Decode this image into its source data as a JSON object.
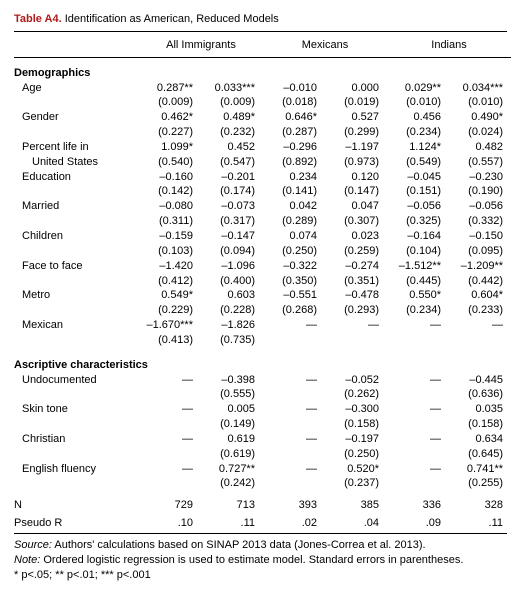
{
  "title_lead": "Table A4.",
  "title_rest": " Identification as American, Reduced Models",
  "group_headers": [
    "All Immigrants",
    "Mexicans",
    "Indians"
  ],
  "sections": [
    {
      "label": "Demographics",
      "rows": [
        {
          "label": "Age",
          "indent": 1,
          "b": [
            "0.287**",
            "0.033***",
            "–0.010",
            "0.000",
            "0.029**",
            "0.034***"
          ],
          "se": [
            "(0.009)",
            "(0.009)",
            "(0.018)",
            "(0.019)",
            "(0.010)",
            "(0.010)"
          ]
        },
        {
          "label": "Gender",
          "indent": 1,
          "b": [
            "0.462*",
            "0.489*",
            "0.646*",
            "0.527",
            "0.456",
            "0.490*"
          ],
          "se": [
            "(0.227)",
            "(0.232)",
            "(0.287)",
            "(0.299)",
            "(0.234)",
            "(0.024)"
          ]
        },
        {
          "label": "Percent life in",
          "label2": "United States",
          "indent": 1,
          "b": [
            "1.099*",
            "0.452",
            "–0.296",
            "–1.197",
            "1.124*",
            "0.482"
          ],
          "se": [
            "(0.540)",
            "(0.547)",
            "(0.892)",
            "(0.973)",
            "(0.549)",
            "(0.557)"
          ]
        },
        {
          "label": "Education",
          "indent": 1,
          "b": [
            "–0.160",
            "–0.201",
            "0.234",
            "0.120",
            "–0.045",
            "–0.230"
          ],
          "se": [
            "(0.142)",
            "(0.174)",
            "(0.141)",
            "(0.147)",
            "(0.151)",
            "(0.190)"
          ]
        },
        {
          "label": "Married",
          "indent": 1,
          "b": [
            "–0.080",
            "–0.073",
            "0.042",
            "0.047",
            "–0.056",
            "–0.056"
          ],
          "se": [
            "(0.311)",
            "(0.317)",
            "(0.289)",
            "(0.307)",
            "(0.325)",
            "(0.332)"
          ]
        },
        {
          "label": "Children",
          "indent": 1,
          "b": [
            "–0.159",
            "–0.147",
            "0.074",
            "0.023",
            "–0.164",
            "–0.150"
          ],
          "se": [
            "(0.103)",
            "(0.094)",
            "(0.250)",
            "(0.259)",
            "(0.104)",
            "(0.095)"
          ]
        },
        {
          "label": "Face to face",
          "indent": 1,
          "b": [
            "–1.420",
            "–1.096",
            "–0.322",
            "–0.274",
            "–1.512**",
            "–1.209**"
          ],
          "se": [
            "(0.412)",
            "(0.400)",
            "(0.350)",
            "(0.351)",
            "(0.445)",
            "(0.442)"
          ]
        },
        {
          "label": "Metro",
          "indent": 1,
          "b": [
            "0.549*",
            "0.603",
            "–0.551",
            "–0.478",
            "0.550*",
            "0.604*"
          ],
          "se": [
            "(0.229)",
            "(0.228)",
            "(0.268)",
            "(0.293)",
            "(0.234)",
            "(0.233)"
          ]
        },
        {
          "label": "Mexican",
          "indent": 1,
          "b": [
            "–1.670***",
            "–1.826",
            "—",
            "—",
            "—",
            "—"
          ],
          "se": [
            "(0.413)",
            "(0.735)",
            "",
            "",
            "",
            ""
          ]
        }
      ]
    },
    {
      "label": "Ascriptive characteristics",
      "rows": [
        {
          "label": "Undocumented",
          "indent": 1,
          "b": [
            "—",
            "–0.398",
            "—",
            "–0.052",
            "—",
            "–0.445"
          ],
          "se": [
            "",
            "(0.555)",
            "",
            "(0.262)",
            "",
            "(0.636)"
          ]
        },
        {
          "label": "Skin tone",
          "indent": 1,
          "b": [
            "—",
            "0.005",
            "—",
            "–0.300",
            "—",
            "0.035"
          ],
          "se": [
            "",
            "(0.149)",
            "",
            "(0.158)",
            "",
            "(0.158)"
          ]
        },
        {
          "label": "Christian",
          "indent": 1,
          "b": [
            "—",
            "0.619",
            "—",
            "–0.197",
            "—",
            "0.634"
          ],
          "se": [
            "",
            "(0.619)",
            "",
            "(0.250)",
            "",
            "(0.645)"
          ]
        },
        {
          "label": "English fluency",
          "indent": 1,
          "b": [
            "—",
            "0.727**",
            "—",
            "0.520*",
            "—",
            "0.741**"
          ],
          "se": [
            "",
            "(0.242)",
            "",
            "(0.237)",
            "",
            "(0.255)"
          ]
        }
      ]
    }
  ],
  "footer_rows": [
    {
      "label": "N",
      "vals": [
        "729",
        "713",
        "393",
        "385",
        "336",
        "328"
      ]
    },
    {
      "label": "Pseudo R",
      "vals": [
        ".10",
        ".11",
        ".02",
        ".04",
        ".09",
        ".11"
      ]
    }
  ],
  "source_label": "Source:",
  "source_text": " Authors' calculations based on SINAP 2013 data (Jones-Correa et al. 2013).",
  "note_label": "Note:",
  "note_text": " Ordered logistic regression is used to estimate model. Standard errors in parentheses.",
  "sig_text": "* p<.05; ** p<.01; *** p<.001",
  "colors": {
    "lead": "#b11a1a",
    "rule": "#000000"
  }
}
